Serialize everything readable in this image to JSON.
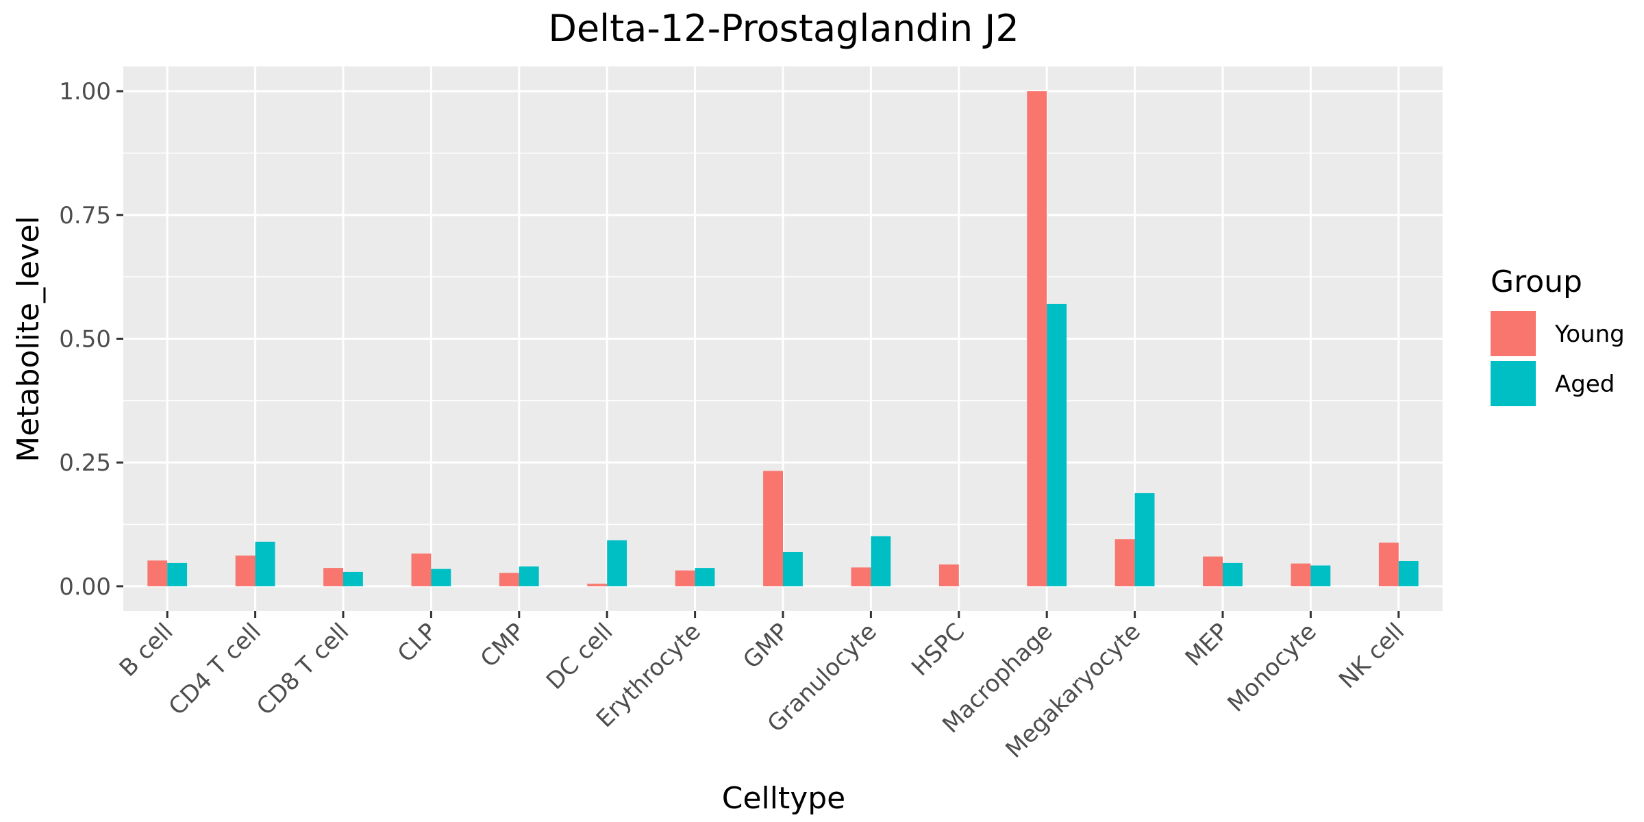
{
  "chart_data": {
    "type": "bar",
    "title": "Delta-12-Prostaglandin J2",
    "xlabel": "Celltype",
    "ylabel": "Metabolite_level",
    "categories": [
      "B cell",
      "CD4 T cell",
      "CD8 T cell",
      "CLP",
      "CMP",
      "DC cell",
      "Erythrocyte",
      "GMP",
      "Granulocyte",
      "HSPC",
      "Macrophage",
      "Megakaryocyte",
      "MEP",
      "Monocyte",
      "NK cell"
    ],
    "series": [
      {
        "name": "Young",
        "color": "#F8766D",
        "values": [
          0.052,
          0.062,
          0.037,
          0.066,
          0.027,
          0.005,
          0.032,
          0.233,
          0.038,
          0.044,
          1.0,
          0.095,
          0.06,
          0.046,
          0.088
        ]
      },
      {
        "name": "Aged",
        "color": "#00BFC4",
        "values": [
          0.047,
          0.09,
          0.029,
          0.035,
          0.04,
          0.093,
          0.037,
          0.069,
          0.101,
          null,
          0.57,
          0.188,
          0.047,
          0.042,
          0.051
        ]
      }
    ],
    "ylim": [
      -0.05,
      1.05
    ],
    "yticks": [
      0.0,
      0.25,
      0.5,
      0.75,
      1.0
    ],
    "ytick_labels": [
      "0.00",
      "0.25",
      "0.50",
      "0.75",
      "1.00"
    ],
    "legend": {
      "title": "Group",
      "position": "right"
    },
    "grid": true,
    "panel_background": "#EBEBEB"
  }
}
